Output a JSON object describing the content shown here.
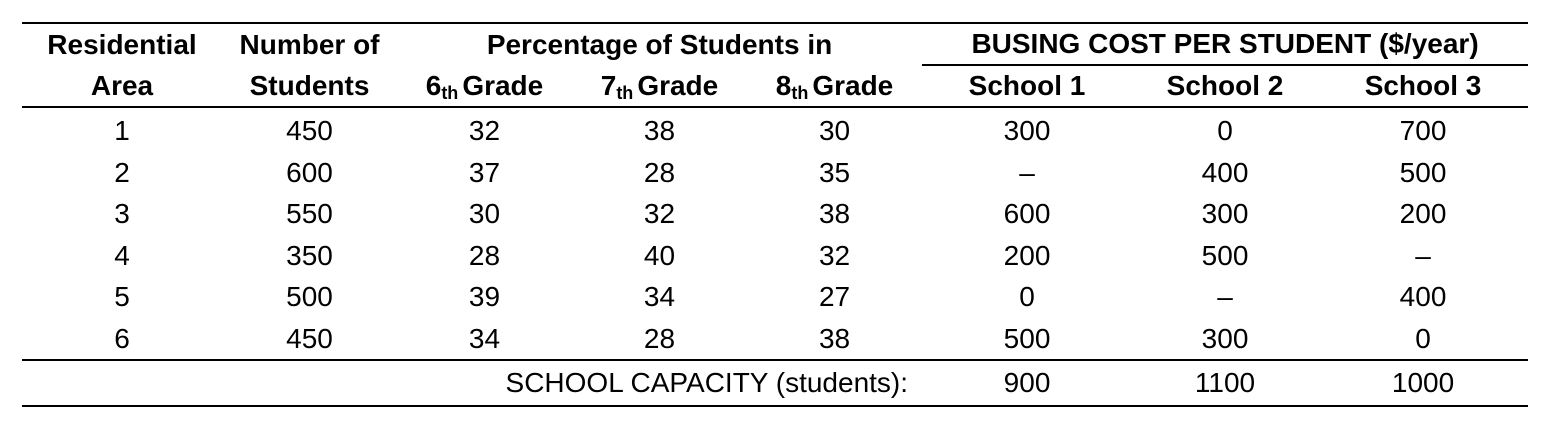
{
  "headers": {
    "residential_area": [
      "Residential",
      "Area"
    ],
    "number_of_students": [
      "Number of",
      "Students"
    ],
    "percentage_group": "Percentage of Students in",
    "grades": [
      {
        "num": "6",
        "suffix": "th",
        "label": "Grade"
      },
      {
        "num": "7",
        "suffix": "th",
        "label": "Grade"
      },
      {
        "num": "8",
        "suffix": "th",
        "label": "Grade"
      }
    ],
    "busing_group": "BUSING COST PER STUDENT ($/year)",
    "schools": [
      "School 1",
      "School 2",
      "School 3"
    ]
  },
  "rows": [
    {
      "area": "1",
      "students": "450",
      "g6": "32",
      "g7": "38",
      "g8": "30",
      "s1": "300",
      "s2": "0",
      "s3": "700"
    },
    {
      "area": "2",
      "students": "600",
      "g6": "37",
      "g7": "28",
      "g8": "35",
      "s1": "–",
      "s2": "400",
      "s3": "500"
    },
    {
      "area": "3",
      "students": "550",
      "g6": "30",
      "g7": "32",
      "g8": "38",
      "s1": "600",
      "s2": "300",
      "s3": "200"
    },
    {
      "area": "4",
      "students": "350",
      "g6": "28",
      "g7": "40",
      "g8": "32",
      "s1": "200",
      "s2": "500",
      "s3": "–"
    },
    {
      "area": "5",
      "students": "500",
      "g6": "39",
      "g7": "34",
      "g8": "27",
      "s1": "0",
      "s2": "–",
      "s3": "400"
    },
    {
      "area": "6",
      "students": "450",
      "g6": "34",
      "g7": "28",
      "g8": "38",
      "s1": "500",
      "s2": "300",
      "s3": "0"
    }
  ],
  "capacity": {
    "label": "SCHOOL CAPACITY (students):",
    "values": [
      "900",
      "1100",
      "1000"
    ]
  }
}
